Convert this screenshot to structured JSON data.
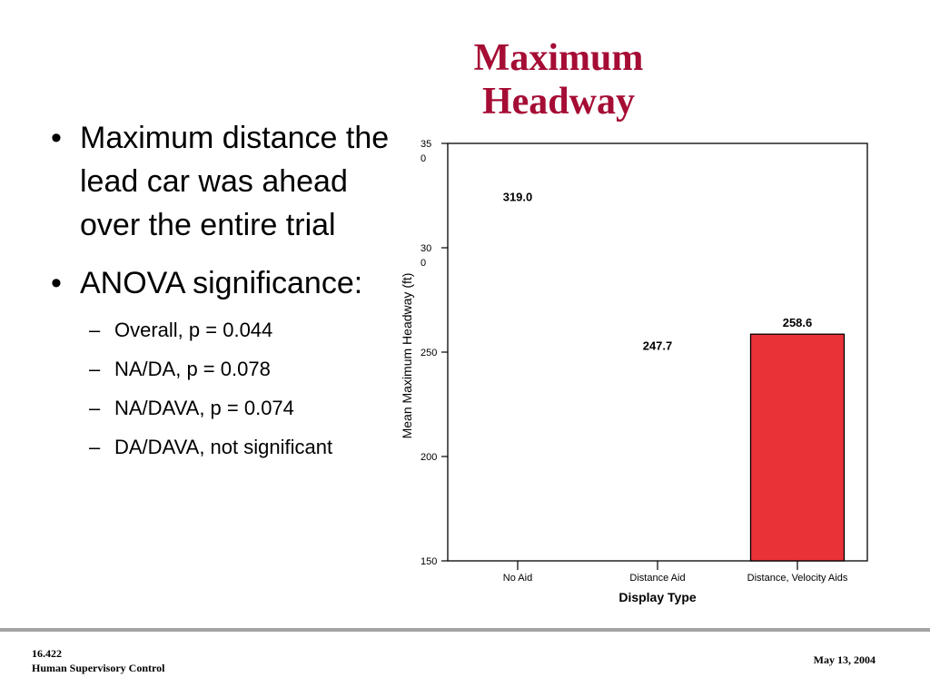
{
  "slide": {
    "title_line1": "Maximum",
    "title_line2": "Headway"
  },
  "bullets": {
    "b1_dot": "•",
    "b1_text": "Maximum distance the lead car was ahead over the entire trial",
    "b2_dot": "•",
    "b2_text": "ANOVA significance:",
    "dash": "–",
    "sub": [
      "Overall, p = 0.044",
      "NA/DA, p = 0.078",
      "NA/DAVA, p = 0.074",
      "DA/DAVA, not significant"
    ]
  },
  "footer": {
    "course_number": "16.422",
    "course_name": "Human Supervisory Control",
    "date": "May 13, 2004"
  },
  "chart_data": {
    "type": "bar",
    "categories": [
      "No Aid",
      "Distance Aid",
      "Distance, Velocity Aids"
    ],
    "values": [
      319.0,
      247.7,
      258.6
    ],
    "data_labels": [
      "319.0",
      "247.7",
      "258.6"
    ],
    "bars_drawn": [
      false,
      false,
      true
    ],
    "xlabel": "Display Type",
    "ylabel": "Mean Maximum Headway (ft)",
    "ylim": [
      150,
      350
    ],
    "yticks": [
      150,
      200,
      250,
      300,
      350
    ],
    "ytick_labels": [
      [
        "150"
      ],
      [
        "200"
      ],
      [
        "250"
      ],
      [
        "30",
        "0"
      ],
      [
        "35",
        "0"
      ]
    ],
    "grid": false,
    "bar_color": "#e83238"
  }
}
